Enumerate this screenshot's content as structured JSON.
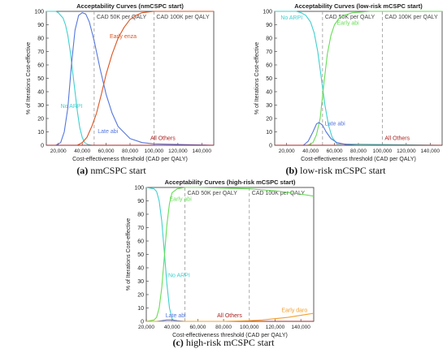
{
  "chart_data": [
    {
      "type": "line",
      "title": "Acceptability Curves (nmCSPC start)",
      "xlabel": "Cost-effectiveness threshold (CAD per QALY)",
      "ylabel": "% of Iterations Cost-effective",
      "xlim": [
        10000,
        150000
      ],
      "ylim": [
        0,
        100
      ],
      "xticks": [
        20000,
        40000,
        60000,
        80000,
        100000,
        120000,
        140000
      ],
      "xtick_labels": [
        "20,000",
        "40,000",
        "60,000",
        "80,000",
        "100,000",
        "120,000",
        "140,000"
      ],
      "yticks": [
        0,
        10,
        20,
        30,
        40,
        50,
        60,
        70,
        80,
        90,
        100
      ],
      "thresholds": [
        {
          "x": 50000,
          "label": "CAD 50K per QALY"
        },
        {
          "x": 100000,
          "label": "CAD 100K per QALY"
        }
      ],
      "caption_letter": "(a)",
      "caption_text": " nmCSPC start",
      "series": [
        {
          "name": "No ARPI",
          "color": "#3fd0d0",
          "label_at": [
            22000,
            28
          ],
          "x": [
            10000,
            14000,
            18000,
            20000,
            22000,
            24000,
            26000,
            28000,
            30000,
            32000,
            34000,
            36000,
            38000,
            40000,
            42000,
            45000,
            48000,
            52000,
            150000
          ],
          "y": [
            100,
            100,
            100,
            99,
            97,
            95,
            90,
            82,
            70,
            55,
            40,
            25,
            13,
            6,
            2,
            0.5,
            0,
            0,
            0
          ]
        },
        {
          "name": "Late abi",
          "color": "#5577dd",
          "label_at": [
            53000,
            9
          ],
          "x": [
            10000,
            18000,
            22000,
            25000,
            28000,
            31000,
            34000,
            37000,
            40000,
            43000,
            46000,
            50000,
            55000,
            60000,
            65000,
            70000,
            80000,
            90000,
            100000,
            150000
          ],
          "y": [
            0,
            0,
            2,
            10,
            28,
            60,
            86,
            97,
            99,
            98,
            92,
            78,
            57,
            38,
            24,
            14,
            5,
            2,
            1,
            0
          ]
        },
        {
          "name": "Early enza",
          "color": "#dd5522",
          "label_at": [
            63000,
            80
          ],
          "x": [
            10000,
            36000,
            40000,
            44000,
            48000,
            52000,
            56000,
            60000,
            65000,
            70000,
            75000,
            80000,
            85000,
            90000,
            95000,
            100000,
            150000
          ],
          "y": [
            0,
            0,
            2,
            6,
            14,
            24,
            38,
            53,
            68,
            80,
            88,
            94,
            97,
            99,
            99.5,
            100,
            100
          ]
        },
        {
          "name": "All Others",
          "color": "#aa2222",
          "label_at": [
            97000,
            4
          ],
          "x": [
            10000,
            150000
          ],
          "y": [
            0,
            0
          ]
        }
      ]
    },
    {
      "type": "line",
      "title": "Acceptability Curves (low-risk mCSPC start)",
      "xlabel": "Cost-effectiveness threshold (CAD per QALY)",
      "ylabel": "% of Iterations Cost-effective",
      "xlim": [
        10000,
        150000
      ],
      "ylim": [
        0,
        100
      ],
      "xticks": [
        20000,
        40000,
        60000,
        80000,
        100000,
        120000,
        140000
      ],
      "xtick_labels": [
        "20,000",
        "40,000",
        "60,000",
        "80,000",
        "100,000",
        "120,000",
        "140,000"
      ],
      "yticks": [
        0,
        10,
        20,
        30,
        40,
        50,
        60,
        70,
        80,
        90,
        100
      ],
      "thresholds": [
        {
          "x": 50000,
          "label": "CAD 50K per QALY"
        },
        {
          "x": 100000,
          "label": "CAD 100K per QALY"
        }
      ],
      "caption_letter": "(b)",
      "caption_text": " low-risk mCSPC start",
      "series": [
        {
          "name": "No ARPI",
          "color": "#3fd0d0",
          "label_at": [
            15000,
            94
          ],
          "x": [
            10000,
            28000,
            32000,
            36000,
            40000,
            43000,
            46000,
            49000,
            52000,
            55000,
            58000,
            62000,
            150000
          ],
          "y": [
            100,
            100,
            99,
            97,
            92,
            84,
            70,
            50,
            30,
            15,
            6,
            1,
            0
          ]
        },
        {
          "name": "Early abi",
          "color": "#66dd55",
          "label_at": [
            62000,
            90
          ],
          "x": [
            10000,
            38000,
            42000,
            45000,
            48000,
            51000,
            54000,
            57000,
            60000,
            64000,
            68000,
            75000,
            90000,
            150000
          ],
          "y": [
            0,
            0,
            2,
            8,
            20,
            45,
            68,
            82,
            90,
            95,
            97,
            99,
            100,
            100
          ]
        },
        {
          "name": "Late abi",
          "color": "#5577dd",
          "label_at": [
            52000,
            15
          ],
          "x": [
            10000,
            34000,
            38000,
            42000,
            45000,
            47000,
            50000,
            53000,
            57000,
            62000,
            70000,
            80000,
            150000
          ],
          "y": [
            0,
            0,
            3,
            10,
            16,
            17,
            15,
            10,
            5,
            2,
            0.5,
            0,
            0
          ]
        },
        {
          "name": "All Others",
          "color": "#aa2222",
          "label_at": [
            102000,
            4
          ],
          "x": [
            10000,
            150000
          ],
          "y": [
            0,
            0
          ]
        }
      ]
    },
    {
      "type": "line",
      "title": "Acceptability Curves (high-risk mCSPC start)",
      "xlabel": "Cost-effectiveness threshold (CAD per QALY)",
      "ylabel": "% of Iterations Cost-effective",
      "xlim": [
        20000,
        150000
      ],
      "ylim": [
        0,
        100
      ],
      "xticks": [
        20000,
        40000,
        60000,
        80000,
        100000,
        120000,
        140000
      ],
      "xtick_labels": [
        "20,000",
        "40,000",
        "60,000",
        "80,000",
        "100,000",
        "120,000",
        "140,000"
      ],
      "yticks": [
        0,
        10,
        20,
        30,
        40,
        50,
        60,
        70,
        80,
        90,
        100
      ],
      "thresholds": [
        {
          "x": 50000,
          "label": "CAD 50K per QALY"
        },
        {
          "x": 100000,
          "label": "CAD 100K per QALY"
        }
      ],
      "caption_letter": "(c)",
      "caption_text": " high-risk mCSPC start",
      "series": [
        {
          "name": "No ARPI",
          "color": "#3fd0d0",
          "label_at": [
            37000,
            33
          ],
          "x": [
            20000,
            26000,
            28000,
            30000,
            32000,
            34000,
            36000,
            38000,
            40000,
            42000,
            150000
          ],
          "y": [
            100,
            99,
            97,
            90,
            75,
            52,
            28,
            10,
            2,
            0,
            0
          ]
        },
        {
          "name": "Early abi",
          "color": "#66dd55",
          "label_at": [
            38000,
            90
          ],
          "x": [
            20000,
            26000,
            28000,
            30000,
            32000,
            34000,
            36000,
            38000,
            40000,
            44000,
            50000,
            60000,
            80000,
            100000,
            120000,
            140000,
            150000
          ],
          "y": [
            0,
            1,
            3,
            10,
            25,
            48,
            72,
            88,
            96,
            99,
            100,
            100,
            99.5,
            99,
            97.5,
            95,
            93.5
          ]
        },
        {
          "name": "Late abi",
          "color": "#5577dd",
          "label_at": [
            35000,
            3
          ],
          "x": [
            20000,
            28000,
            32000,
            36000,
            40000,
            44000,
            50000,
            150000
          ],
          "y": [
            0,
            0,
            0.5,
            1,
            1,
            0.5,
            0,
            0
          ]
        },
        {
          "name": "All Others",
          "color": "#aa2222",
          "label_at": [
            75000,
            3
          ],
          "x": [
            20000,
            150000
          ],
          "y": [
            0,
            0
          ]
        },
        {
          "name": "Early daro",
          "color": "#f0a030",
          "label_at": [
            125000,
            7
          ],
          "x": [
            20000,
            80000,
            100000,
            110000,
            120000,
            130000,
            140000,
            150000
          ],
          "y": [
            0,
            0,
            0.5,
            1,
            2,
            3,
            4.5,
            6
          ]
        }
      ]
    }
  ]
}
